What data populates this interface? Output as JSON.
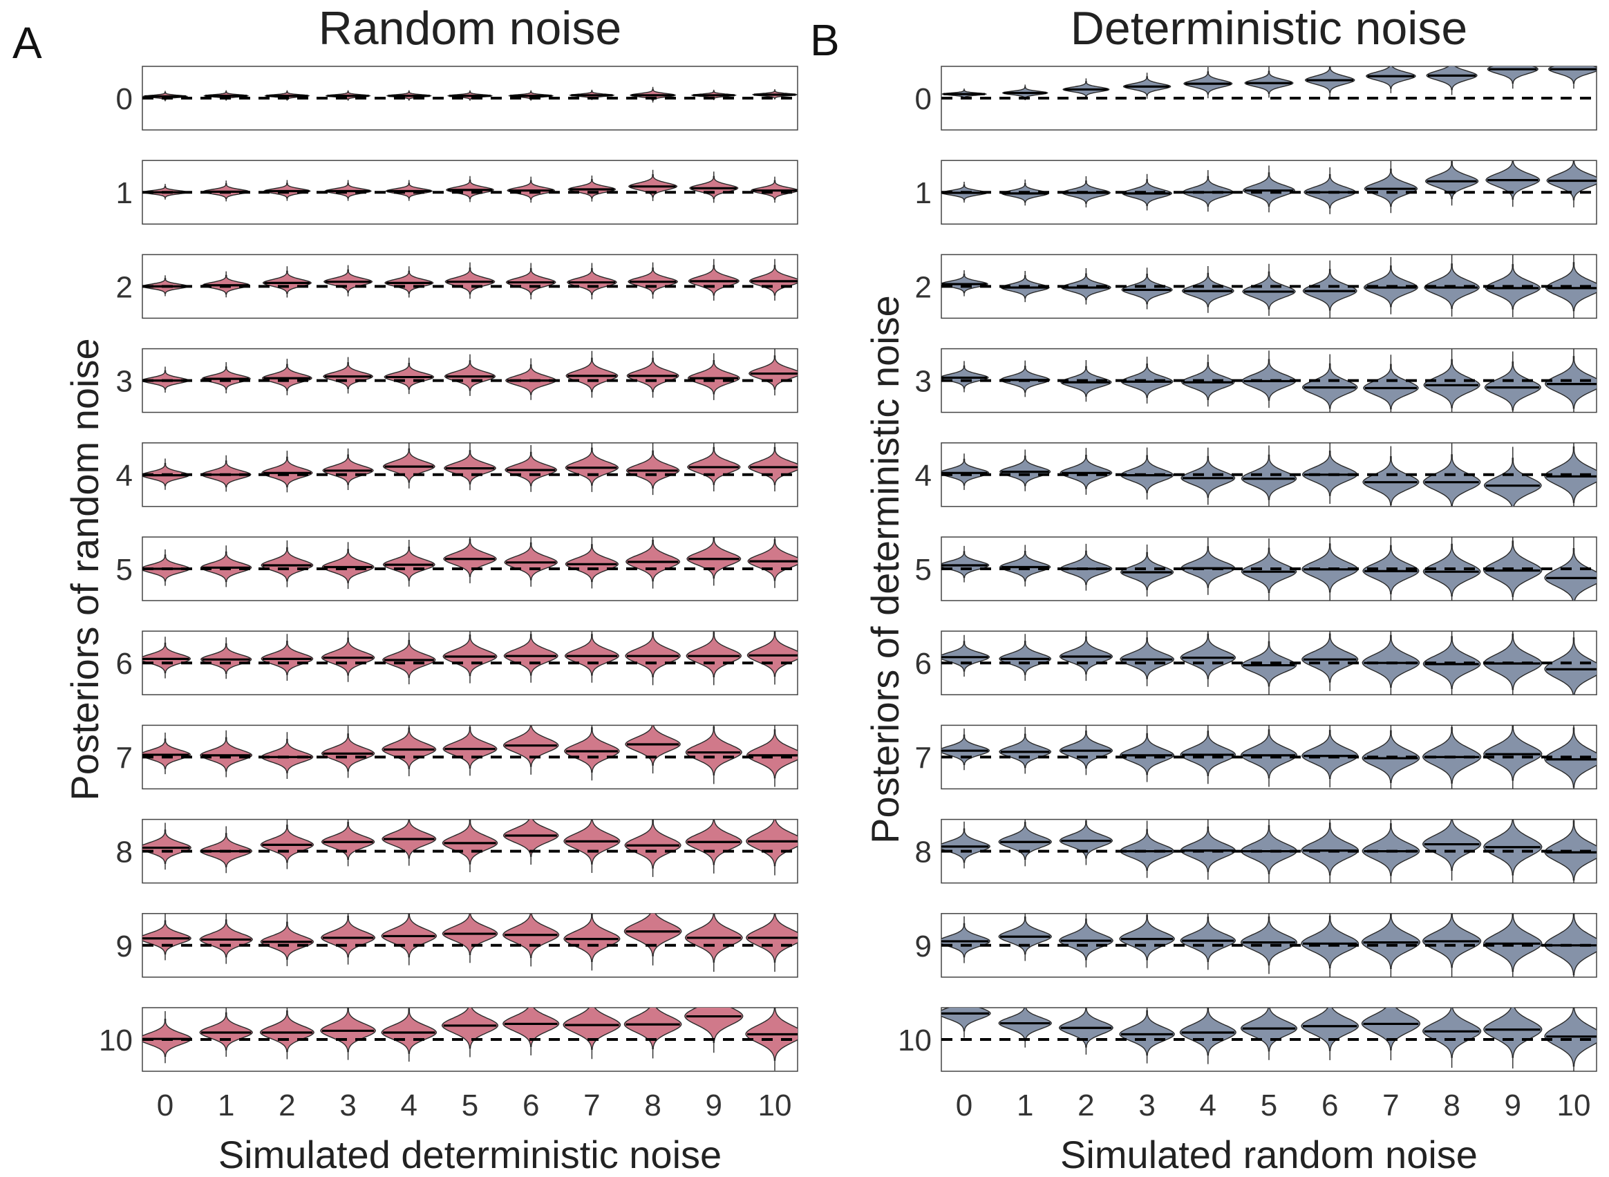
{
  "colors": {
    "random_fill": "#d0798a",
    "deterministic_fill": "#8592a8"
  },
  "chart_data": [
    {
      "type": "violin",
      "panel_label": "A",
      "title": "Random noise",
      "xlabel": "Simulated deterministic noise",
      "ylabel": "Posteriors of random noise",
      "x": [
        0,
        1,
        2,
        3,
        4,
        5,
        6,
        7,
        8,
        9,
        10
      ],
      "x_tick_labels": [
        "0",
        "1",
        "2",
        "3",
        "4",
        "5",
        "6",
        "7",
        "8",
        "9",
        "10"
      ],
      "facet_labels": [
        "0",
        "1",
        "2",
        "3",
        "4",
        "5",
        "6",
        "7",
        "8",
        "9",
        "10"
      ],
      "facet_values": [
        0,
        1,
        2,
        3,
        4,
        5,
        6,
        7,
        8,
        9,
        10
      ],
      "facet_ylim_offset": [
        -0.55,
        0.55
      ],
      "reference_line": "dashed at facet value",
      "medians": [
        [
          0.03,
          0.04,
          0.04,
          0.04,
          0.04,
          0.04,
          0.04,
          0.05,
          0.05,
          0.05,
          0.06
        ],
        [
          1.0,
          1.01,
          1.02,
          1.02,
          1.02,
          1.04,
          1.03,
          1.05,
          1.1,
          1.07,
          1.03
        ],
        [
          2.0,
          2.02,
          2.06,
          2.08,
          2.06,
          2.08,
          2.07,
          2.07,
          2.08,
          2.09,
          2.09
        ],
        [
          3.0,
          3.03,
          3.04,
          3.07,
          3.06,
          3.07,
          3.0,
          3.08,
          3.08,
          3.04,
          3.12
        ],
        [
          3.99,
          4.0,
          4.03,
          4.07,
          4.14,
          4.11,
          4.08,
          4.12,
          4.07,
          4.13,
          4.13
        ],
        [
          5.0,
          5.02,
          5.06,
          5.03,
          5.07,
          5.17,
          5.11,
          5.08,
          5.12,
          5.17,
          5.13
        ],
        [
          6.07,
          6.06,
          6.07,
          6.09,
          6.05,
          6.11,
          6.12,
          6.12,
          6.12,
          6.12,
          6.13
        ],
        [
          7.04,
          7.03,
          7.0,
          7.06,
          7.13,
          7.14,
          7.2,
          7.1,
          7.22,
          7.08,
          7.03
        ],
        [
          8.06,
          8.0,
          8.11,
          8.16,
          8.21,
          8.14,
          8.27,
          8.17,
          8.1,
          8.16,
          8.17
        ],
        [
          9.12,
          9.1,
          9.06,
          9.13,
          9.16,
          9.2,
          9.18,
          9.11,
          9.24,
          9.13,
          9.13
        ],
        [
          10.01,
          10.12,
          10.12,
          10.15,
          10.12,
          10.24,
          10.27,
          10.25,
          10.26,
          10.4,
          10.09
        ]
      ],
      "sd": [
        [
          0.02,
          0.02,
          0.02,
          0.02,
          0.02,
          0.02,
          0.02,
          0.02,
          0.03,
          0.02,
          0.02
        ],
        [
          0.03,
          0.04,
          0.04,
          0.04,
          0.04,
          0.05,
          0.05,
          0.05,
          0.06,
          0.06,
          0.05
        ],
        [
          0.04,
          0.05,
          0.06,
          0.06,
          0.06,
          0.07,
          0.07,
          0.07,
          0.07,
          0.08,
          0.08
        ],
        [
          0.05,
          0.06,
          0.07,
          0.07,
          0.07,
          0.08,
          0.08,
          0.09,
          0.09,
          0.09,
          0.09
        ],
        [
          0.06,
          0.07,
          0.08,
          0.08,
          0.09,
          0.09,
          0.09,
          0.1,
          0.1,
          0.1,
          0.1
        ],
        [
          0.07,
          0.08,
          0.09,
          0.09,
          0.09,
          0.1,
          0.1,
          0.1,
          0.11,
          0.11,
          0.11
        ],
        [
          0.08,
          0.08,
          0.09,
          0.1,
          0.1,
          0.11,
          0.11,
          0.11,
          0.12,
          0.12,
          0.12
        ],
        [
          0.08,
          0.09,
          0.09,
          0.1,
          0.11,
          0.11,
          0.12,
          0.12,
          0.12,
          0.13,
          0.13
        ],
        [
          0.09,
          0.09,
          0.1,
          0.1,
          0.11,
          0.12,
          0.12,
          0.13,
          0.13,
          0.13,
          0.14
        ],
        [
          0.09,
          0.1,
          0.1,
          0.11,
          0.12,
          0.12,
          0.13,
          0.13,
          0.14,
          0.14,
          0.14
        ],
        [
          0.1,
          0.1,
          0.11,
          0.12,
          0.12,
          0.13,
          0.13,
          0.14,
          0.14,
          0.15,
          0.15
        ]
      ]
    },
    {
      "type": "violin",
      "panel_label": "B",
      "title": "Deterministic noise",
      "xlabel": "Simulated random noise",
      "ylabel": "Posteriors of deterministic noise",
      "x": [
        0,
        1,
        2,
        3,
        4,
        5,
        6,
        7,
        8,
        9,
        10
      ],
      "x_tick_labels": [
        "0",
        "1",
        "2",
        "3",
        "4",
        "5",
        "6",
        "7",
        "8",
        "9",
        "10"
      ],
      "facet_labels": [
        "0",
        "1",
        "2",
        "3",
        "4",
        "5",
        "6",
        "7",
        "8",
        "9",
        "10"
      ],
      "facet_values": [
        0,
        1,
        2,
        3,
        4,
        5,
        6,
        7,
        8,
        9,
        10
      ],
      "facet_ylim_offset": [
        -0.55,
        0.55
      ],
      "reference_line": "dashed at facet value",
      "medians": [
        [
          0.07,
          0.09,
          0.15,
          0.2,
          0.25,
          0.26,
          0.31,
          0.38,
          0.39,
          0.5,
          0.5
        ],
        [
          0.99,
          0.98,
          0.99,
          0.98,
          1.0,
          1.03,
          1.0,
          1.06,
          1.19,
          1.21,
          1.2
        ],
        [
          2.04,
          1.98,
          1.98,
          1.94,
          1.92,
          1.91,
          1.92,
          1.98,
          1.98,
          1.97,
          1.97
        ],
        [
          3.05,
          3.01,
          2.97,
          2.98,
          2.97,
          2.99,
          2.88,
          2.87,
          2.92,
          2.88,
          2.94
        ],
        [
          4.03,
          4.05,
          4.03,
          3.99,
          3.94,
          3.93,
          4.0,
          3.87,
          3.87,
          3.81,
          3.97
        ],
        [
          5.06,
          5.03,
          5.0,
          4.94,
          5.01,
          4.95,
          4.99,
          4.96,
          4.95,
          4.97,
          4.84
        ],
        [
          6.1,
          6.07,
          6.11,
          6.06,
          6.09,
          5.96,
          6.06,
          6.0,
          5.98,
          5.99,
          5.89
        ],
        [
          7.11,
          7.09,
          7.11,
          7.03,
          7.04,
          7.03,
          7.02,
          6.98,
          7.0,
          7.05,
          6.96
        ],
        [
          8.08,
          8.16,
          8.18,
          8.0,
          8.01,
          8.0,
          8.01,
          8.0,
          8.12,
          8.07,
          7.98
        ],
        [
          9.07,
          9.15,
          9.08,
          9.11,
          9.08,
          9.05,
          9.03,
          9.05,
          9.07,
          9.03,
          9.0
        ],
        [
          10.45,
          10.28,
          10.2,
          10.09,
          10.12,
          10.19,
          10.23,
          10.27,
          10.14,
          10.17,
          10.05
        ]
      ],
      "sd": [
        [
          0.02,
          0.03,
          0.04,
          0.05,
          0.06,
          0.06,
          0.07,
          0.07,
          0.08,
          0.08,
          0.08
        ],
        [
          0.04,
          0.05,
          0.06,
          0.07,
          0.08,
          0.09,
          0.09,
          0.1,
          0.1,
          0.11,
          0.11
        ],
        [
          0.05,
          0.06,
          0.07,
          0.08,
          0.09,
          0.1,
          0.11,
          0.11,
          0.12,
          0.12,
          0.13
        ],
        [
          0.06,
          0.07,
          0.08,
          0.09,
          0.1,
          0.11,
          0.12,
          0.12,
          0.13,
          0.13,
          0.14
        ],
        [
          0.07,
          0.08,
          0.09,
          0.1,
          0.11,
          0.12,
          0.12,
          0.13,
          0.14,
          0.14,
          0.15
        ],
        [
          0.07,
          0.08,
          0.09,
          0.1,
          0.11,
          0.12,
          0.13,
          0.13,
          0.14,
          0.15,
          0.15
        ],
        [
          0.08,
          0.09,
          0.1,
          0.11,
          0.12,
          0.12,
          0.13,
          0.14,
          0.14,
          0.15,
          0.16
        ],
        [
          0.08,
          0.09,
          0.1,
          0.11,
          0.12,
          0.13,
          0.13,
          0.14,
          0.15,
          0.15,
          0.16
        ],
        [
          0.09,
          0.1,
          0.1,
          0.11,
          0.12,
          0.13,
          0.14,
          0.14,
          0.15,
          0.16,
          0.16
        ],
        [
          0.09,
          0.1,
          0.11,
          0.12,
          0.12,
          0.13,
          0.14,
          0.15,
          0.15,
          0.16,
          0.17
        ],
        [
          0.1,
          0.1,
          0.11,
          0.12,
          0.13,
          0.13,
          0.14,
          0.15,
          0.15,
          0.16,
          0.17
        ]
      ]
    }
  ]
}
